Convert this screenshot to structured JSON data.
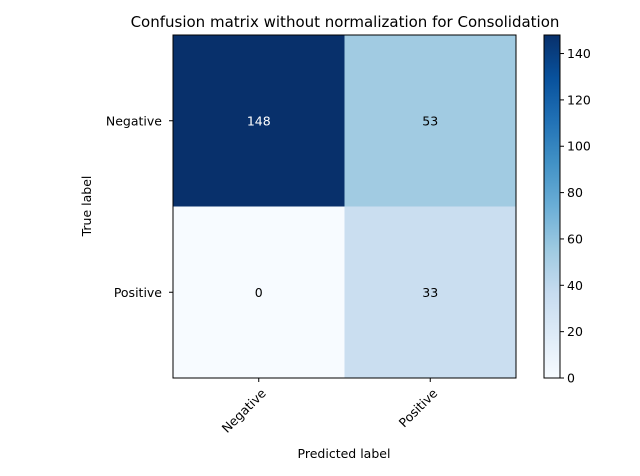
{
  "chart_data": {
    "type": "heatmap",
    "title": "Confusion matrix without normalization for Consolidation",
    "xlabel": "Predicted label",
    "ylabel": "True label",
    "x_categories": [
      "Negative",
      "Positive"
    ],
    "y_categories": [
      "Negative",
      "Positive"
    ],
    "values": [
      [
        148,
        53
      ],
      [
        0,
        33
      ]
    ],
    "colormap": "Blues",
    "colorbar": {
      "min": 0,
      "max": 148,
      "ticks": [
        "0",
        "20",
        "40",
        "60",
        "80",
        "100",
        "120",
        "140"
      ]
    },
    "cell_colors": [
      [
        "#08306b",
        "#a1cbe2"
      ],
      [
        "#f7fbff",
        "#cadef0"
      ]
    ],
    "text_colors": [
      [
        "#ffffff",
        "#000000"
      ],
      [
        "#000000",
        "#000000"
      ]
    ]
  }
}
